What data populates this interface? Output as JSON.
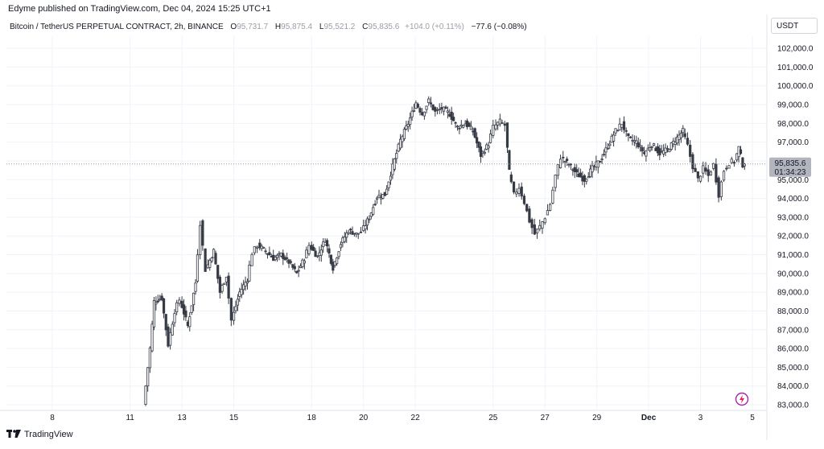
{
  "header": {
    "publisher": "Edyme published on TradingView.com, Dec 04, 2024 15:25 UTC+1"
  },
  "legend": {
    "symbol": "Bitcoin / TetherUS PERPETUAL CONTRACT, 2h, BINANCE",
    "o_label": "O",
    "o_value": "95,731.7",
    "h_label": "H",
    "h_value": "95,875.4",
    "l_label": "L",
    "l_value": "95,521.2",
    "c_label": "C",
    "c_value": "95,835.6",
    "change": "+104.0 (+0.11%)",
    "change2": "−77.6 (−0.08%)"
  },
  "currency": "USDT",
  "footer": {
    "brand": "TradingView"
  },
  "icons": {
    "brand_logo": "tradingview-logo",
    "bolt": "lightning-icon"
  },
  "price_tag": {
    "price": "95,835.6",
    "countdown": "01:34:23"
  },
  "colors": {
    "candle": "#363a45",
    "wick": "#363a45",
    "tag_bg": "#b2b5be",
    "grid": "#f0f3fa",
    "accent": "#9c27b0"
  },
  "chart_data": {
    "type": "candlestick",
    "title": "Bitcoin / TetherUS PERPETUAL CONTRACT, 2h, BINANCE",
    "ylim": [
      82600,
      102800
    ],
    "y_ticks": [
      "102,000.0",
      "101,000.0",
      "100,000.0",
      "99,000.0",
      "98,000.0",
      "97,000.0",
      "96,000.0",
      "95,000.0",
      "94,000.0",
      "93,000.0",
      "92,000.0",
      "91,000.0",
      "90,000.0",
      "89,000.0",
      "88,000.0",
      "87,000.0",
      "86,000.0",
      "85,000.0",
      "84,000.0",
      "83,000.0"
    ],
    "y_tick_values": [
      102000,
      101000,
      100000,
      99000,
      98000,
      97000,
      96000,
      95000,
      94000,
      93000,
      92000,
      91000,
      90000,
      89000,
      88000,
      87000,
      86000,
      85000,
      84000,
      83000
    ],
    "x_ticks": [
      {
        "label": "8",
        "day": 8
      },
      {
        "label": "11",
        "day": 11
      },
      {
        "label": "13",
        "day": 13
      },
      {
        "label": "15",
        "day": 15
      },
      {
        "label": "18",
        "day": 18
      },
      {
        "label": "20",
        "day": 20
      },
      {
        "label": "22",
        "day": 22
      },
      {
        "label": "25",
        "day": 25
      },
      {
        "label": "27",
        "day": 27
      },
      {
        "label": "29",
        "day": 29
      },
      {
        "label": "Dec",
        "day": 31,
        "bold": true
      },
      {
        "label": "3",
        "day": 33
      },
      {
        "label": "5",
        "day": 35
      }
    ],
    "x_range_days": [
      6.0,
      36.0
    ],
    "anchors": [
      [
        11.6,
        83000
      ],
      [
        11.85,
        86000
      ],
      [
        12.0,
        88500
      ],
      [
        12.3,
        88700
      ],
      [
        12.55,
        86200
      ],
      [
        12.8,
        88000
      ],
      [
        13.0,
        88600
      ],
      [
        13.3,
        87200
      ],
      [
        13.6,
        89500
      ],
      [
        13.8,
        92700
      ],
      [
        14.0,
        90200
      ],
      [
        14.3,
        91200
      ],
      [
        14.55,
        89000
      ],
      [
        14.8,
        89900
      ],
      [
        15.0,
        87500
      ],
      [
        15.3,
        89000
      ],
      [
        15.6,
        89700
      ],
      [
        15.8,
        91100
      ],
      [
        16.0,
        91500
      ],
      [
        16.3,
        91200
      ],
      [
        16.6,
        90800
      ],
      [
        16.9,
        91000
      ],
      [
        17.2,
        90600
      ],
      [
        17.5,
        90000
      ],
      [
        17.8,
        90800
      ],
      [
        18.0,
        91500
      ],
      [
        18.3,
        90900
      ],
      [
        18.6,
        91800
      ],
      [
        18.9,
        90300
      ],
      [
        19.2,
        91600
      ],
      [
        19.5,
        92300
      ],
      [
        19.8,
        92100
      ],
      [
        20.0,
        92200
      ],
      [
        20.3,
        93000
      ],
      [
        20.6,
        94100
      ],
      [
        20.9,
        94200
      ],
      [
        21.2,
        95700
      ],
      [
        21.5,
        97100
      ],
      [
        21.8,
        98000
      ],
      [
        22.1,
        99100
      ],
      [
        22.35,
        98500
      ],
      [
        22.6,
        99200
      ],
      [
        22.85,
        98600
      ],
      [
        23.1,
        98800
      ],
      [
        23.4,
        98500
      ],
      [
        23.7,
        97800
      ],
      [
        24.0,
        98000
      ],
      [
        24.3,
        97600
      ],
      [
        24.6,
        96300
      ],
      [
        24.9,
        96900
      ],
      [
        25.1,
        97800
      ],
      [
        25.35,
        98100
      ],
      [
        25.55,
        97900
      ],
      [
        25.7,
        95400
      ],
      [
        25.9,
        94200
      ],
      [
        26.1,
        94600
      ],
      [
        26.3,
        93800
      ],
      [
        26.5,
        92800
      ],
      [
        26.7,
        92100
      ],
      [
        26.9,
        92500
      ],
      [
        27.1,
        93000
      ],
      [
        27.3,
        93700
      ],
      [
        27.5,
        95200
      ],
      [
        27.7,
        96200
      ],
      [
        28.0,
        95800
      ],
      [
        28.3,
        95300
      ],
      [
        28.6,
        95000
      ],
      [
        28.9,
        95600
      ],
      [
        29.2,
        96000
      ],
      [
        29.5,
        96800
      ],
      [
        29.8,
        97600
      ],
      [
        30.05,
        98000
      ],
      [
        30.3,
        97200
      ],
      [
        30.6,
        97000
      ],
      [
        30.9,
        96400
      ],
      [
        31.2,
        96900
      ],
      [
        31.5,
        96400
      ],
      [
        31.8,
        96600
      ],
      [
        32.1,
        97100
      ],
      [
        32.4,
        97600
      ],
      [
        32.6,
        96800
      ],
      [
        32.8,
        95700
      ],
      [
        33.0,
        95000
      ],
      [
        33.2,
        95600
      ],
      [
        33.4,
        95200
      ],
      [
        33.6,
        95800
      ],
      [
        33.8,
        94200
      ],
      [
        34.0,
        95500
      ],
      [
        34.2,
        95900
      ],
      [
        34.4,
        96000
      ],
      [
        34.55,
        96700
      ],
      [
        34.7,
        95800
      ]
    ],
    "last_price": 95835.6,
    "grid": true
  }
}
